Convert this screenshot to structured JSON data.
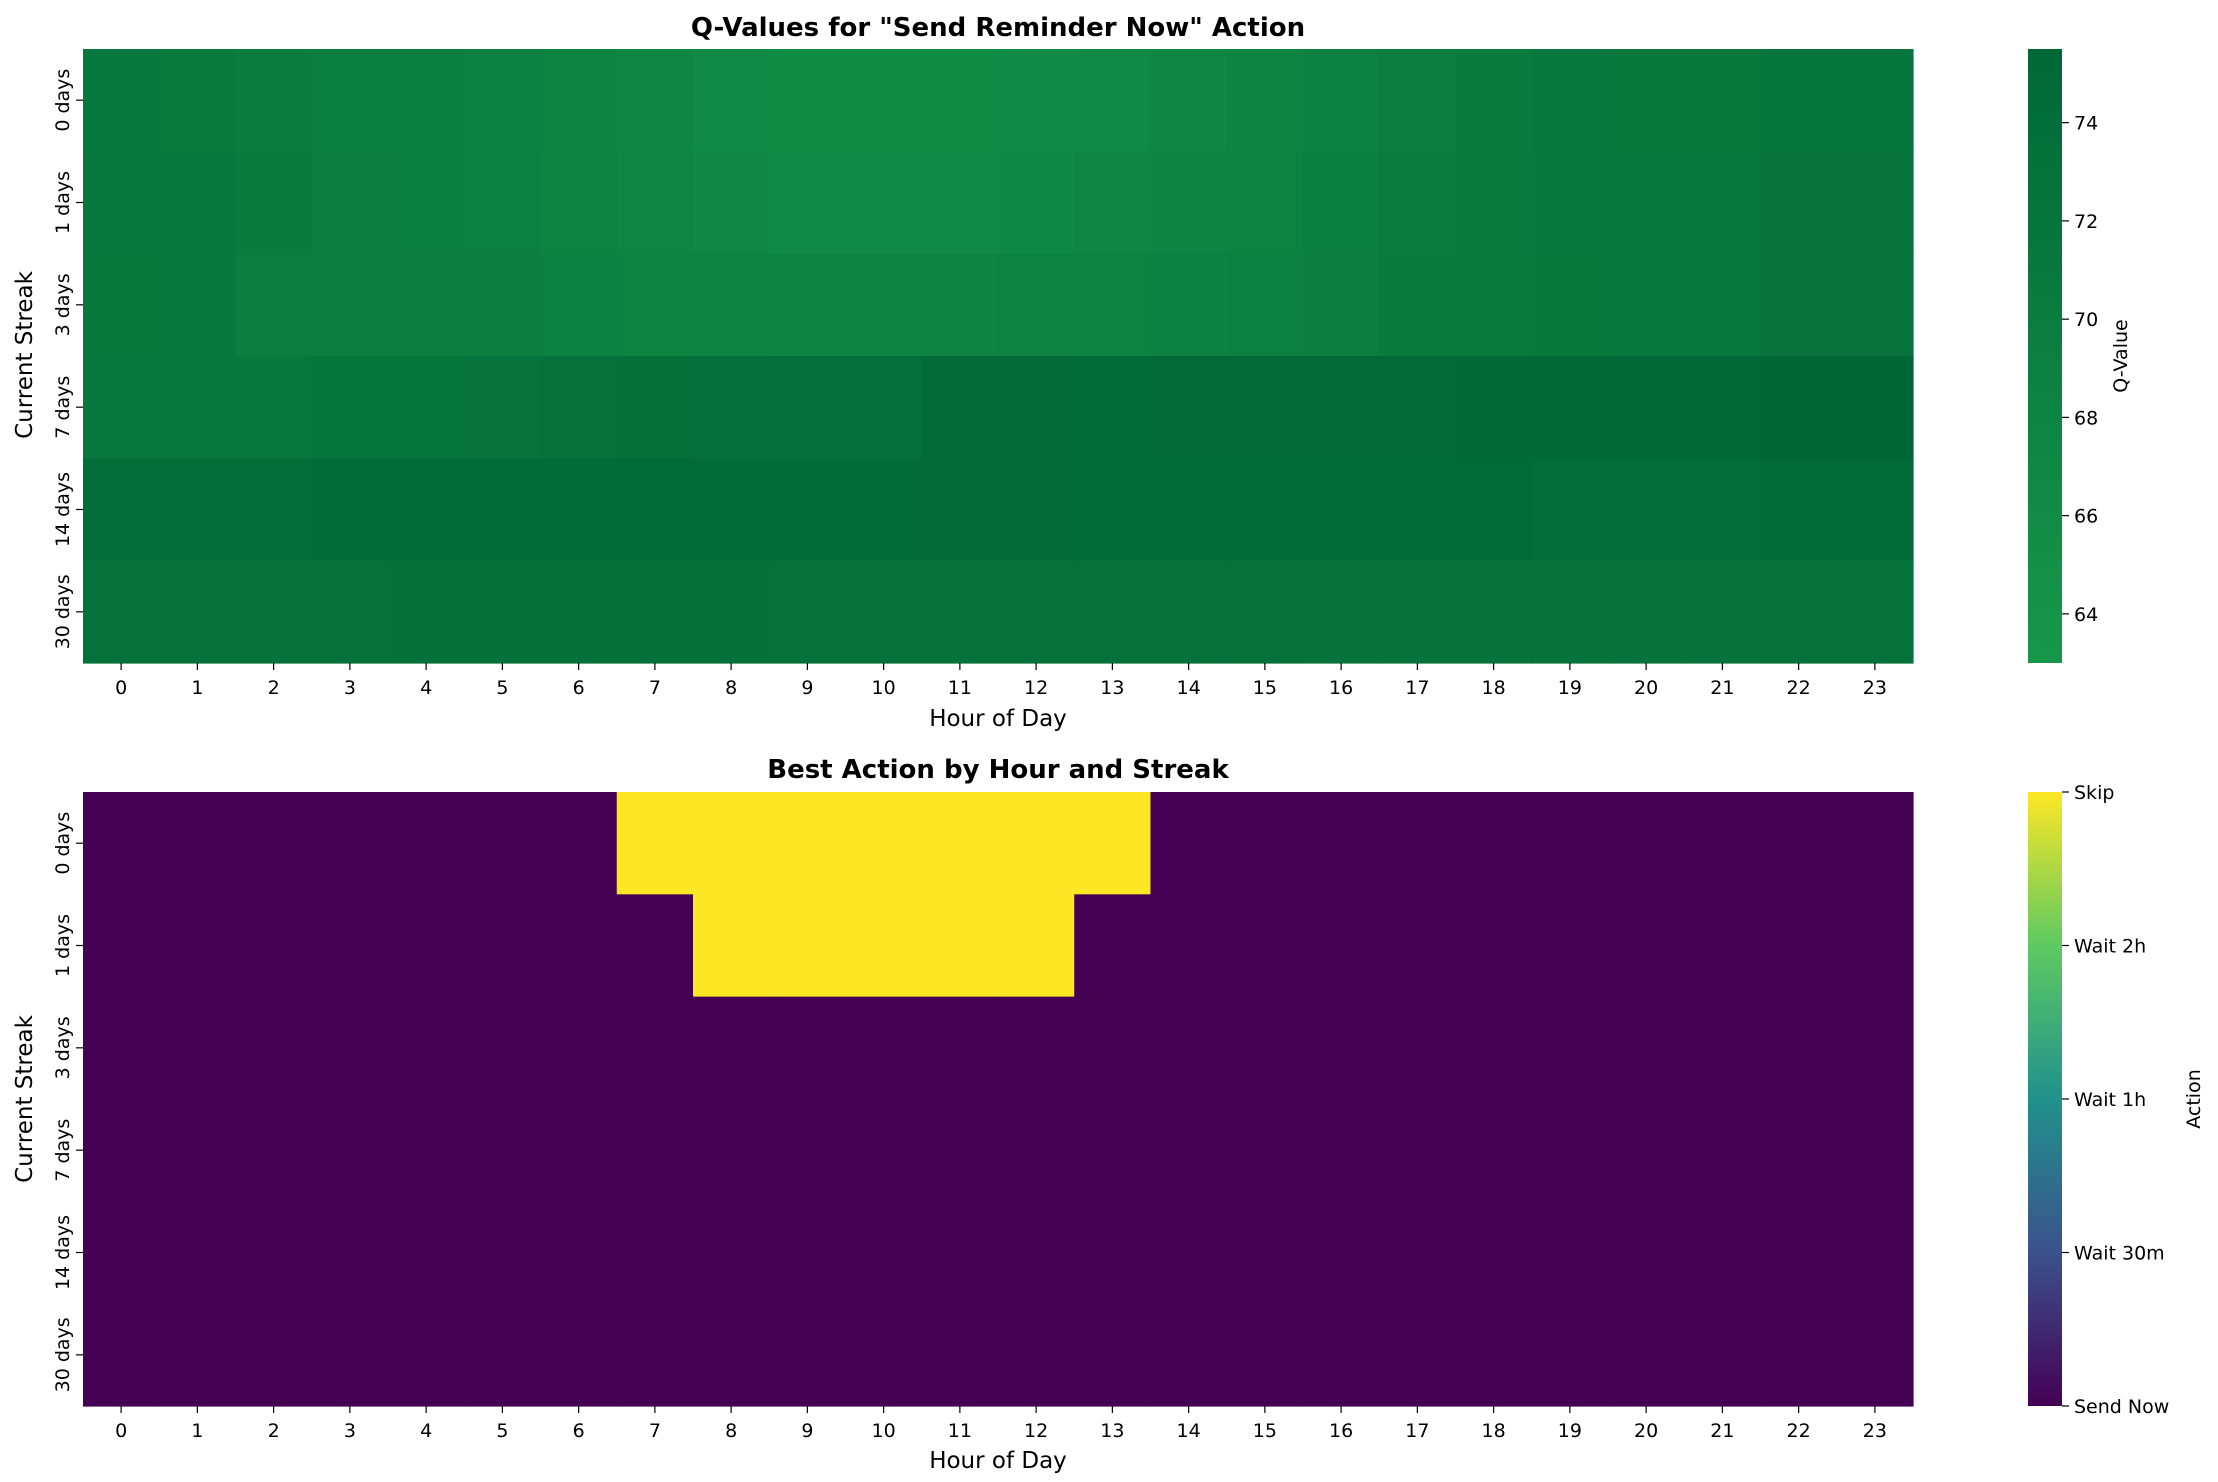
{
  "chart_data": [
    {
      "type": "heatmap",
      "title": "Q-Values for \"Send Reminder Now\" Action",
      "xlabel": "Hour of Day",
      "ylabel": "Current Streak",
      "x_categories": [
        "0",
        "1",
        "2",
        "3",
        "4",
        "5",
        "6",
        "7",
        "8",
        "9",
        "10",
        "11",
        "12",
        "13",
        "14",
        "15",
        "16",
        "17",
        "18",
        "19",
        "20",
        "21",
        "22",
        "23"
      ],
      "y_categories": [
        "0 days",
        "1 days",
        "3 days",
        "7 days",
        "14 days",
        "30 days"
      ],
      "values": [
        [
          71.0,
          70.8,
          70.3,
          69.8,
          69.5,
          68.8,
          68.2,
          67.3,
          66.5,
          66.0,
          66.0,
          66.0,
          66.2,
          66.5,
          67.5,
          68.0,
          69.0,
          70.0,
          70.5,
          71.0,
          71.3,
          71.3,
          72.0,
          72.0
        ],
        [
          71.2,
          71.0,
          70.5,
          70.0,
          69.8,
          69.2,
          68.6,
          67.8,
          67.0,
          66.5,
          66.5,
          66.5,
          66.8,
          67.3,
          68.0,
          68.6,
          69.5,
          70.3,
          70.8,
          71.2,
          71.5,
          71.5,
          72.2,
          72.2
        ],
        [
          71.3,
          71.2,
          70.0,
          70.0,
          70.0,
          69.6,
          69.0,
          68.7,
          68.2,
          68.0,
          68.0,
          68.0,
          68.2,
          68.4,
          68.8,
          69.0,
          69.6,
          70.5,
          70.8,
          71.3,
          71.5,
          71.5,
          72.2,
          72.2
        ],
        [
          71.2,
          71.2,
          71.2,
          72.0,
          72.0,
          72.4,
          72.8,
          73.5,
          73.6,
          73.6,
          73.6,
          74.6,
          74.6,
          74.8,
          75.0,
          75.0,
          75.0,
          75.0,
          75.2,
          75.2,
          75.2,
          75.2,
          75.5,
          75.5
        ],
        [
          73.8,
          73.8,
          73.8,
          74.5,
          74.5,
          74.5,
          74.8,
          74.8,
          74.5,
          74.5,
          74.5,
          74.6,
          74.6,
          74.8,
          74.8,
          74.8,
          74.8,
          74.8,
          74.8,
          74.2,
          74.2,
          74.2,
          74.5,
          74.5
        ],
        [
          72.8,
          72.8,
          72.8,
          72.8,
          73.3,
          73.3,
          73.3,
          73.3,
          73.3,
          73.0,
          73.0,
          73.0,
          73.0,
          73.0,
          73.0,
          73.0,
          72.6,
          72.6,
          72.6,
          72.6,
          72.6,
          72.6,
          72.8,
          72.8
        ]
      ],
      "colorbar": {
        "label": "Q-Value",
        "range": [
          63,
          75.5
        ],
        "ticks": [
          64,
          66,
          68,
          70,
          72,
          74
        ],
        "colors": [
          "#17974a",
          "#006837"
        ]
      }
    },
    {
      "type": "heatmap",
      "title": "Best Action by Hour and Streak",
      "xlabel": "Hour of Day",
      "ylabel": "Current Streak",
      "x_categories": [
        "0",
        "1",
        "2",
        "3",
        "4",
        "5",
        "6",
        "7",
        "8",
        "9",
        "10",
        "11",
        "12",
        "13",
        "14",
        "15",
        "16",
        "17",
        "18",
        "19",
        "20",
        "21",
        "22",
        "23"
      ],
      "y_categories": [
        "0 days",
        "1 days",
        "3 days",
        "7 days",
        "14 days",
        "30 days"
      ],
      "values": [
        [
          0,
          0,
          0,
          0,
          0,
          0,
          0,
          4,
          4,
          4,
          4,
          4,
          4,
          4,
          0,
          0,
          0,
          0,
          0,
          0,
          0,
          0,
          0,
          0
        ],
        [
          0,
          0,
          0,
          0,
          0,
          0,
          0,
          0,
          4,
          4,
          4,
          4,
          4,
          0,
          0,
          0,
          0,
          0,
          0,
          0,
          0,
          0,
          0,
          0
        ],
        [
          0,
          0,
          0,
          0,
          0,
          0,
          0,
          0,
          0,
          0,
          0,
          0,
          0,
          0,
          0,
          0,
          0,
          0,
          0,
          0,
          0,
          0,
          0,
          0
        ],
        [
          0,
          0,
          0,
          0,
          0,
          0,
          0,
          0,
          0,
          0,
          0,
          0,
          0,
          0,
          0,
          0,
          0,
          0,
          0,
          0,
          0,
          0,
          0,
          0
        ],
        [
          0,
          0,
          0,
          0,
          0,
          0,
          0,
          0,
          0,
          0,
          0,
          0,
          0,
          0,
          0,
          0,
          0,
          0,
          0,
          0,
          0,
          0,
          0,
          0
        ],
        [
          0,
          0,
          0,
          0,
          0,
          0,
          0,
          0,
          0,
          0,
          0,
          0,
          0,
          0,
          0,
          0,
          0,
          0,
          0,
          0,
          0,
          0,
          0,
          0
        ]
      ],
      "colorbar": {
        "label": "Action",
        "range": [
          0,
          4
        ],
        "tick_values": [
          0,
          1,
          2,
          3,
          4
        ],
        "tick_labels": [
          "Send Now",
          "Wait 30m",
          "Wait 1h",
          "Wait 2h",
          "Skip"
        ],
        "colors": [
          "#440154",
          "#3b528b",
          "#21918c",
          "#5ec962",
          "#fde725"
        ]
      }
    }
  ]
}
